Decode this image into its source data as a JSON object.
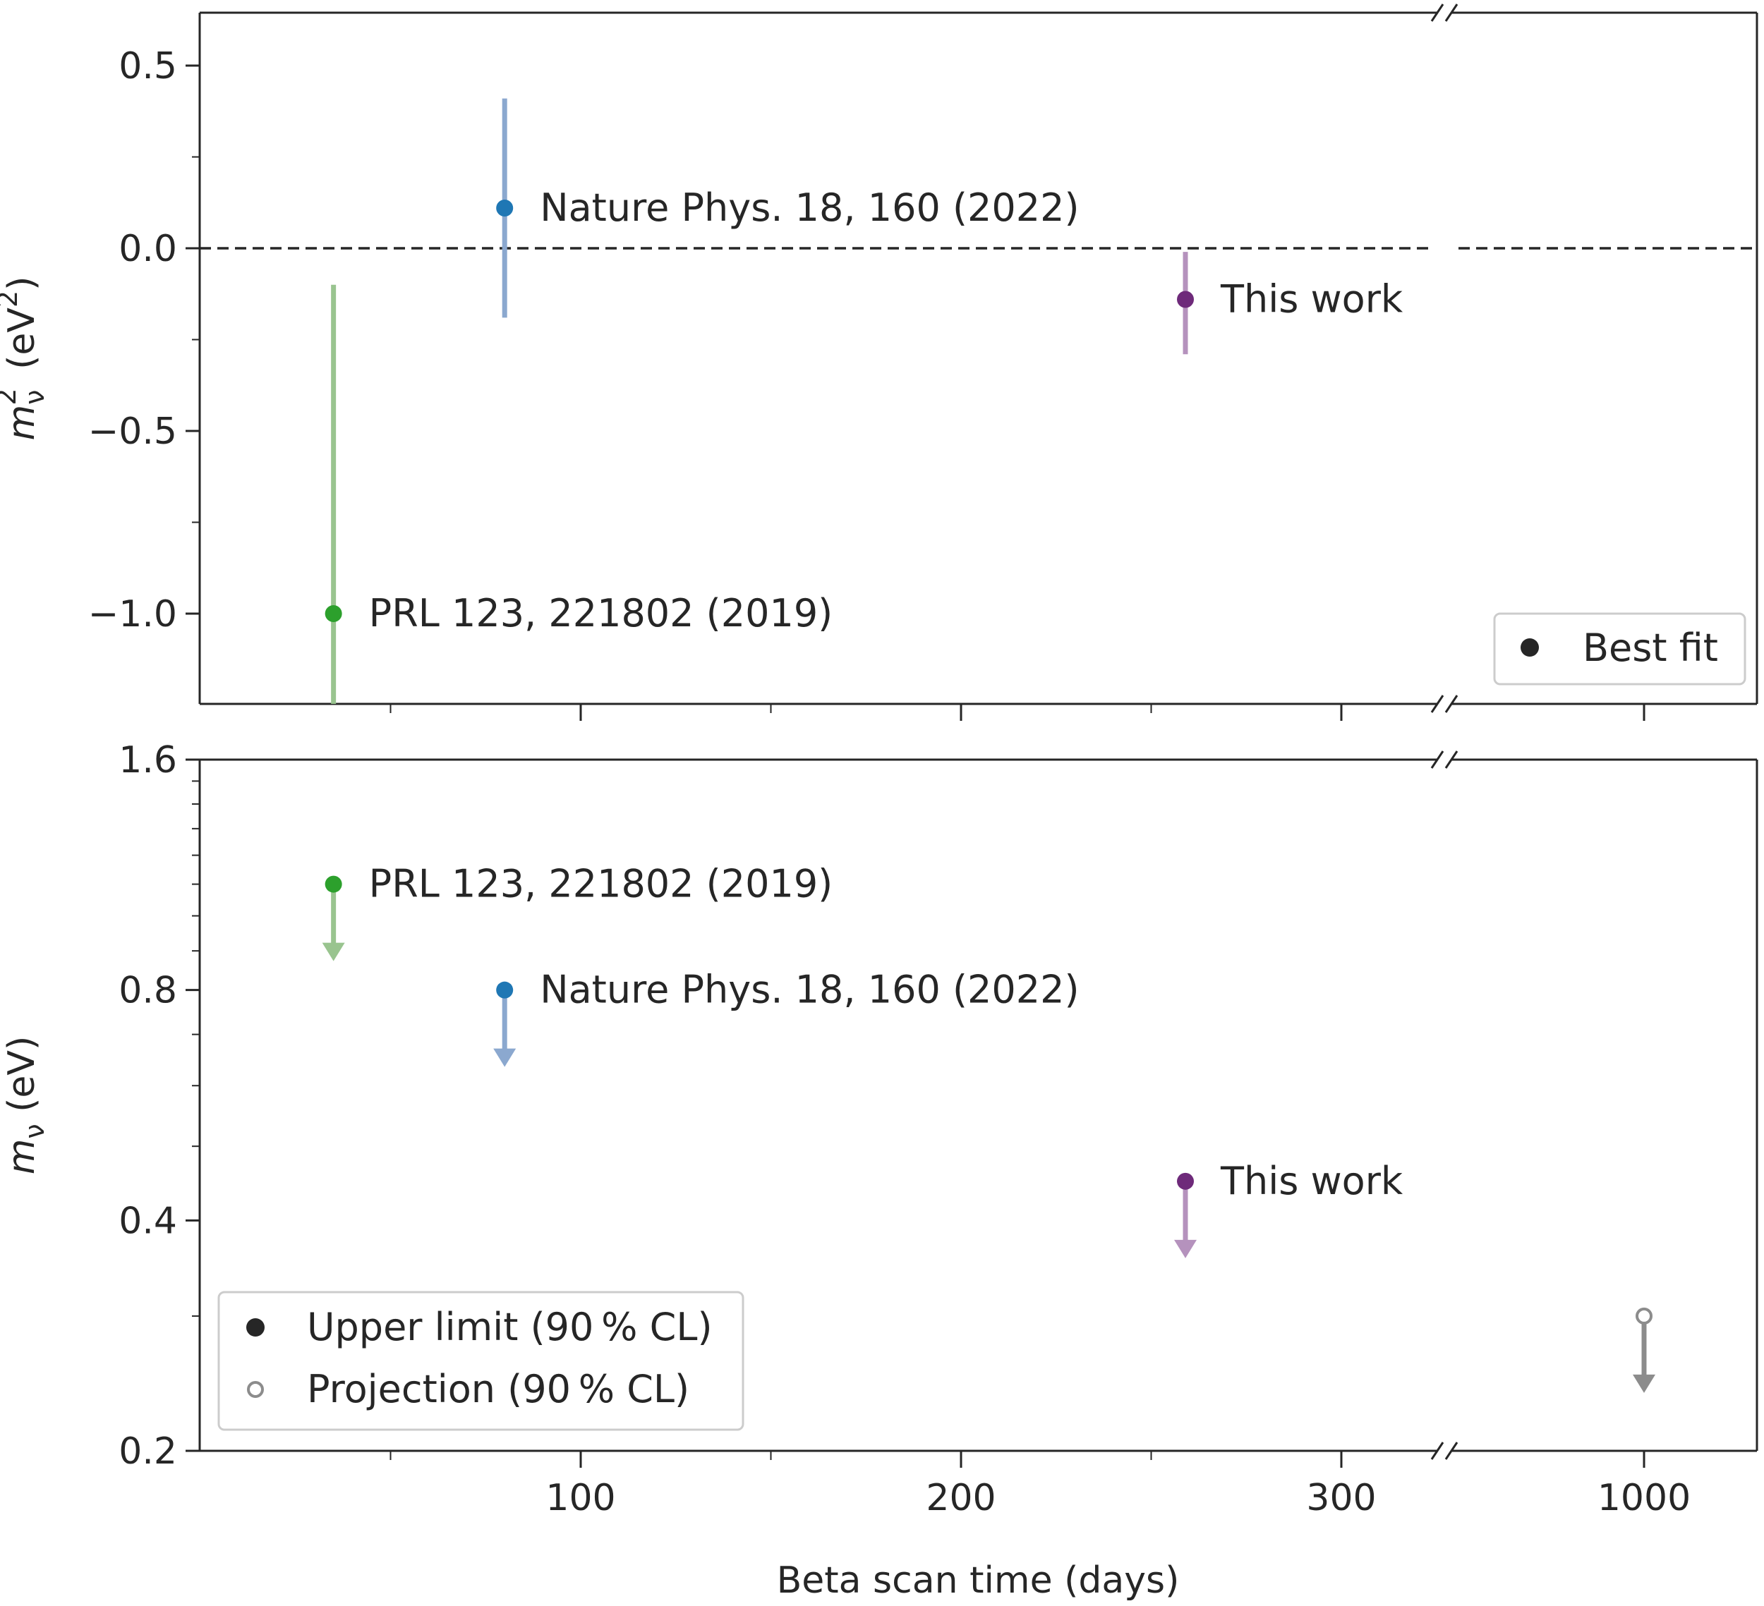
{
  "chart_data": [
    {
      "type": "scatter",
      "panel": "top",
      "ylabel": "m_ν² (eV²)",
      "ylim": [
        -1.25,
        0.65
      ],
      "xlim": [
        0,
        1100
      ],
      "x_axis_broken_between": [
        340,
        960
      ],
      "yticks": [
        {
          "value": 0.5,
          "label": "0.5"
        },
        {
          "value": 0.0,
          "label": "0.0"
        },
        {
          "value": -0.5,
          "label": "−0.5"
        },
        {
          "value": -1.0,
          "label": "−1.0"
        }
      ],
      "y_minor_ticks": [
        0.25,
        -0.25,
        -0.75
      ],
      "reference_line": {
        "y": 0.0,
        "style": "dashed"
      },
      "points": [
        {
          "label": "PRL 123, 221802 (2019)",
          "x": 35,
          "y": -1.0,
          "err_low": -1.25,
          "err_high": -0.1,
          "color": "#2ca02c",
          "bar_color": "#99c48f"
        },
        {
          "label": "Nature Phys. 18, 160 (2022)",
          "x": 80,
          "y": 0.11,
          "err_low": -0.19,
          "err_high": 0.41,
          "color": "#1f77b4",
          "bar_color": "#8ba8cf"
        },
        {
          "label": "This work",
          "x": 259,
          "y": -0.14,
          "err_low": -0.29,
          "err_high": -0.01,
          "color": "#6e2a7a",
          "bar_color": "#b592bd"
        }
      ],
      "legend": {
        "position": "lower-right",
        "entries": [
          {
            "label": "Best fit",
            "marker": "filled-circle"
          }
        ]
      }
    },
    {
      "type": "scatter",
      "panel": "bottom",
      "ylabel": "m_ν (eV)",
      "xlabel": "Beta scan time (days)",
      "y_scale": "log",
      "ylim": [
        0.2,
        1.6
      ],
      "xlim": [
        0,
        1100
      ],
      "x_axis_broken_between": [
        340,
        960
      ],
      "yticks": [
        {
          "value": 1.6,
          "label": "1.6"
        },
        {
          "value": 0.8,
          "label": "0.8"
        },
        {
          "value": 0.4,
          "label": "0.4"
        },
        {
          "value": 0.2,
          "label": "0.2"
        }
      ],
      "y_minor_ticks": [
        0.3,
        0.5,
        0.6,
        0.7,
        0.9,
        1.0,
        1.1,
        1.2,
        1.3,
        1.4,
        1.5
      ],
      "xticks": [
        {
          "value": 100,
          "label": "100"
        },
        {
          "value": 200,
          "label": "200"
        },
        {
          "value": 300,
          "label": "300"
        },
        {
          "value": 1000,
          "label": "1000"
        }
      ],
      "x_minor_ticks": [
        50,
        150,
        250
      ],
      "points": [
        {
          "label": "PRL 123, 221802 (2019)",
          "x": 35,
          "y": 1.1,
          "kind": "upper-limit",
          "color": "#2ca02c",
          "arrow_color": "#99c48f"
        },
        {
          "label": "Nature Phys. 18, 160 (2022)",
          "x": 80,
          "y": 0.8,
          "kind": "upper-limit",
          "color": "#1f77b4",
          "arrow_color": "#8ba8cf"
        },
        {
          "label": "This work",
          "x": 259,
          "y": 0.45,
          "kind": "upper-limit",
          "color": "#6e2a7a",
          "arrow_color": "#b592bd"
        },
        {
          "label": "",
          "x": 1000,
          "y": 0.3,
          "kind": "projection",
          "color": "#8c8c8c",
          "arrow_color": "#8c8c8c"
        }
      ],
      "legend": {
        "position": "lower-left",
        "entries": [
          {
            "label": "Upper limit (90 % CL)",
            "marker": "filled-circle"
          },
          {
            "label": "Projection (90 % CL)",
            "marker": "open-circle"
          }
        ]
      }
    }
  ]
}
